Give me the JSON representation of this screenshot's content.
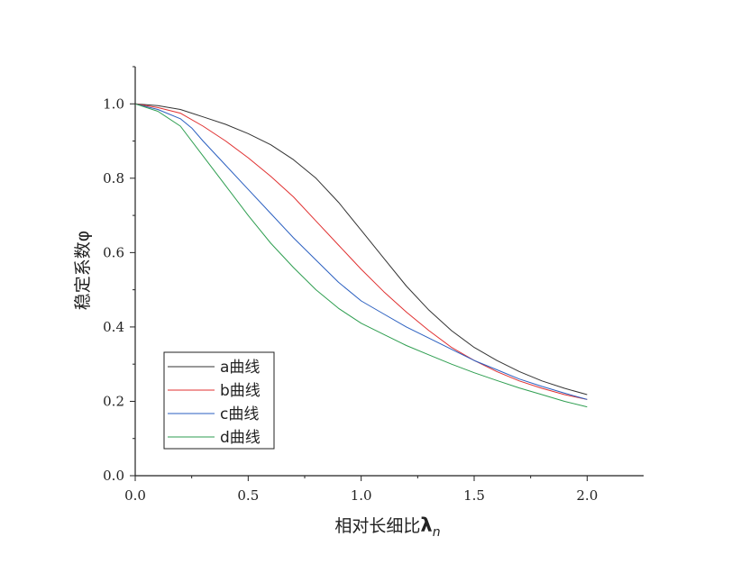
{
  "chart_data": {
    "type": "line",
    "title": "",
    "xlabel": "相对长细比",
    "xlabel_symbol": "λ",
    "xlabel_subscript": "n",
    "ylabel": "稳定系数φ",
    "xlim": [
      0,
      2.25
    ],
    "ylim": [
      0,
      1.1
    ],
    "xticks": [
      0.0,
      0.5,
      1.0,
      1.5,
      2.0
    ],
    "xtick_labels": [
      "0.0",
      "0.5",
      "1.0",
      "1.5",
      "2.0"
    ],
    "yticks": [
      0.0,
      0.2,
      0.4,
      0.6,
      0.8,
      1.0
    ],
    "ytick_labels": [
      "0.0",
      "0.2",
      "0.4",
      "0.6",
      "0.8",
      "1.0"
    ],
    "grid": false,
    "legend_position": "bottom-left",
    "series": [
      {
        "name": "a曲线",
        "color": "#333333",
        "x": [
          0,
          0.1,
          0.2,
          0.3,
          0.4,
          0.5,
          0.6,
          0.7,
          0.8,
          0.9,
          1.0,
          1.1,
          1.2,
          1.3,
          1.4,
          1.5,
          1.6,
          1.7,
          1.8,
          1.9,
          2.0
        ],
        "y": [
          1.0,
          0.995,
          0.985,
          0.965,
          0.945,
          0.92,
          0.89,
          0.85,
          0.8,
          0.735,
          0.66,
          0.585,
          0.51,
          0.445,
          0.39,
          0.345,
          0.31,
          0.28,
          0.255,
          0.235,
          0.218
        ]
      },
      {
        "name": "b曲线",
        "color": "#e03030",
        "x": [
          0,
          0.1,
          0.2,
          0.3,
          0.4,
          0.5,
          0.6,
          0.7,
          0.8,
          0.9,
          1.0,
          1.1,
          1.2,
          1.3,
          1.4,
          1.5,
          1.6,
          1.7,
          1.8,
          1.9,
          2.0
        ],
        "y": [
          1.0,
          0.99,
          0.975,
          0.94,
          0.9,
          0.855,
          0.805,
          0.75,
          0.685,
          0.62,
          0.555,
          0.495,
          0.44,
          0.39,
          0.345,
          0.31,
          0.28,
          0.255,
          0.235,
          0.218,
          0.205
        ]
      },
      {
        "name": "c曲线",
        "color": "#2a5fc0",
        "x": [
          0,
          0.1,
          0.2,
          0.25,
          0.3,
          0.4,
          0.5,
          0.6,
          0.7,
          0.8,
          0.9,
          1.0,
          1.1,
          1.2,
          1.3,
          1.4,
          1.5,
          1.6,
          1.7,
          1.8,
          1.9,
          2.0
        ],
        "y": [
          1.0,
          0.985,
          0.96,
          0.935,
          0.9,
          0.835,
          0.77,
          0.705,
          0.64,
          0.58,
          0.52,
          0.47,
          0.435,
          0.4,
          0.37,
          0.34,
          0.31,
          0.285,
          0.26,
          0.24,
          0.222,
          0.205
        ]
      },
      {
        "name": "d曲线",
        "color": "#2e9e50",
        "x": [
          0,
          0.1,
          0.2,
          0.3,
          0.4,
          0.5,
          0.6,
          0.7,
          0.8,
          0.9,
          1.0,
          1.1,
          1.2,
          1.3,
          1.4,
          1.5,
          1.6,
          1.7,
          1.8,
          1.9,
          2.0
        ],
        "y": [
          1.0,
          0.98,
          0.94,
          0.86,
          0.78,
          0.7,
          0.625,
          0.56,
          0.5,
          0.45,
          0.41,
          0.38,
          0.35,
          0.325,
          0.3,
          0.277,
          0.256,
          0.236,
          0.218,
          0.2,
          0.185
        ]
      }
    ]
  }
}
